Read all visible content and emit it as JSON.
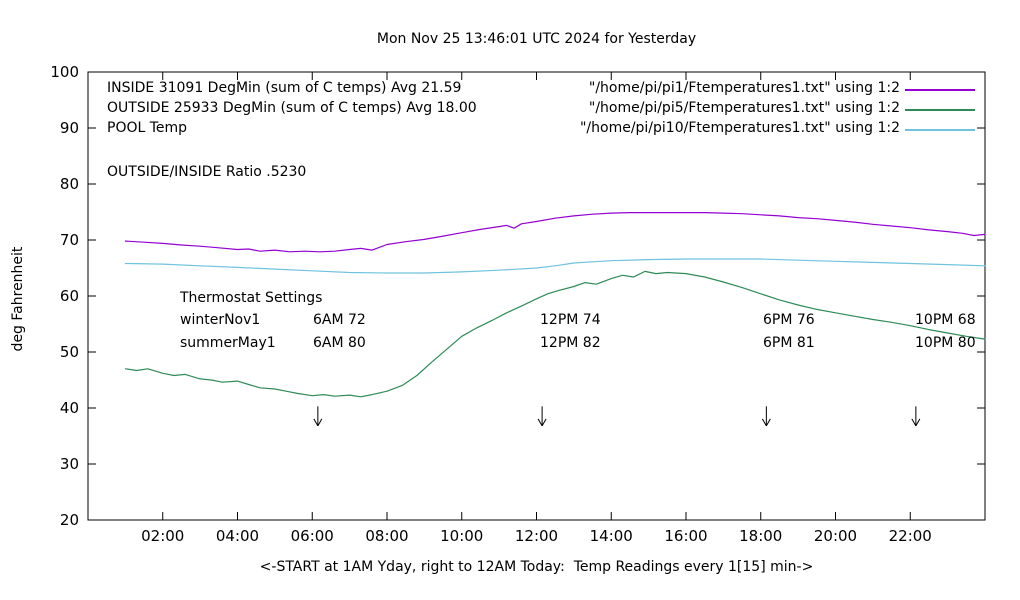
{
  "chart_data": {
    "type": "line",
    "title": "Mon Nov 25 13:46:01 UTC 2024 for Yesterday",
    "ylabel": "deg Fahrenheit",
    "xlabel": "<-START at 1AM Yday, right to 12AM Today:  Temp Readings every 1[15] min->",
    "xlim": [
      0,
      24
    ],
    "ylim": [
      20,
      100
    ],
    "y_ticks": [
      20,
      30,
      40,
      50,
      60,
      70,
      80,
      90,
      100
    ],
    "x_ticks": [
      {
        "v": 2,
        "label": "02:00"
      },
      {
        "v": 4,
        "label": "04:00"
      },
      {
        "v": 6,
        "label": "06:00"
      },
      {
        "v": 8,
        "label": "08:00"
      },
      {
        "v": 10,
        "label": "10:00"
      },
      {
        "v": 12,
        "label": "12:00"
      },
      {
        "v": 14,
        "label": "14:00"
      },
      {
        "v": 16,
        "label": "16:00"
      },
      {
        "v": 18,
        "label": "18:00"
      },
      {
        "v": 20,
        "label": "20:00"
      },
      {
        "v": 22,
        "label": "22:00"
      }
    ],
    "grid": false,
    "legend_position": "top-inside",
    "series": [
      {
        "name": "INSIDE",
        "color": "#9400d3",
        "points": [
          [
            1,
            69.8
          ],
          [
            1.5,
            69.6
          ],
          [
            2,
            69.4
          ],
          [
            2.5,
            69.1
          ],
          [
            3,
            68.9
          ],
          [
            3.5,
            68.6
          ],
          [
            4,
            68.3
          ],
          [
            4.3,
            68.4
          ],
          [
            4.6,
            68.0
          ],
          [
            5,
            68.2
          ],
          [
            5.4,
            67.9
          ],
          [
            5.8,
            68.0
          ],
          [
            6.2,
            67.9
          ],
          [
            6.6,
            68.0
          ],
          [
            7,
            68.3
          ],
          [
            7.3,
            68.5
          ],
          [
            7.6,
            68.2
          ],
          [
            8,
            69.2
          ],
          [
            8.5,
            69.7
          ],
          [
            9,
            70.1
          ],
          [
            9.5,
            70.7
          ],
          [
            10,
            71.3
          ],
          [
            10.5,
            71.9
          ],
          [
            11,
            72.4
          ],
          [
            11.2,
            72.6
          ],
          [
            11.4,
            72.1
          ],
          [
            11.6,
            72.9
          ],
          [
            12,
            73.3
          ],
          [
            12.5,
            73.9
          ],
          [
            13,
            74.3
          ],
          [
            13.5,
            74.6
          ],
          [
            14,
            74.8
          ],
          [
            14.5,
            74.9
          ],
          [
            15,
            74.9
          ],
          [
            15.5,
            74.9
          ],
          [
            16,
            74.9
          ],
          [
            16.5,
            74.9
          ],
          [
            17,
            74.8
          ],
          [
            17.5,
            74.7
          ],
          [
            18,
            74.5
          ],
          [
            18.5,
            74.3
          ],
          [
            19,
            74.0
          ],
          [
            19.5,
            73.8
          ],
          [
            20,
            73.5
          ],
          [
            20.5,
            73.2
          ],
          [
            21,
            72.8
          ],
          [
            21.5,
            72.5
          ],
          [
            22,
            72.2
          ],
          [
            22.5,
            71.8
          ],
          [
            23,
            71.5
          ],
          [
            23.4,
            71.2
          ],
          [
            23.7,
            70.8
          ],
          [
            24,
            71.0
          ]
        ]
      },
      {
        "name": "OUTSIDE",
        "color": "#2e8b57",
        "points": [
          [
            1,
            47.0
          ],
          [
            1.3,
            46.7
          ],
          [
            1.6,
            47.0
          ],
          [
            2,
            46.2
          ],
          [
            2.3,
            45.8
          ],
          [
            2.6,
            46.0
          ],
          [
            3,
            45.2
          ],
          [
            3.3,
            45.0
          ],
          [
            3.6,
            44.6
          ],
          [
            4,
            44.8
          ],
          [
            4.3,
            44.2
          ],
          [
            4.6,
            43.6
          ],
          [
            5,
            43.4
          ],
          [
            5.3,
            43.0
          ],
          [
            5.6,
            42.6
          ],
          [
            6,
            42.2
          ],
          [
            6.3,
            42.4
          ],
          [
            6.6,
            42.1
          ],
          [
            7,
            42.3
          ],
          [
            7.3,
            42.0
          ],
          [
            7.6,
            42.4
          ],
          [
            8,
            43.0
          ],
          [
            8.4,
            44.0
          ],
          [
            8.8,
            45.8
          ],
          [
            9.2,
            48.2
          ],
          [
            9.6,
            50.5
          ],
          [
            10,
            52.8
          ],
          [
            10.4,
            54.3
          ],
          [
            10.8,
            55.6
          ],
          [
            11.2,
            57.0
          ],
          [
            11.6,
            58.2
          ],
          [
            12,
            59.5
          ],
          [
            12.3,
            60.4
          ],
          [
            12.6,
            61.0
          ],
          [
            13,
            61.7
          ],
          [
            13.3,
            62.4
          ],
          [
            13.6,
            62.1
          ],
          [
            14,
            63.1
          ],
          [
            14.3,
            63.7
          ],
          [
            14.6,
            63.4
          ],
          [
            14.9,
            64.4
          ],
          [
            15.2,
            64.0
          ],
          [
            15.5,
            64.2
          ],
          [
            16,
            64.0
          ],
          [
            16.5,
            63.4
          ],
          [
            17,
            62.5
          ],
          [
            17.5,
            61.5
          ],
          [
            18,
            60.4
          ],
          [
            18.5,
            59.3
          ],
          [
            19,
            58.4
          ],
          [
            19.5,
            57.6
          ],
          [
            20,
            57.0
          ],
          [
            20.5,
            56.4
          ],
          [
            21,
            55.8
          ],
          [
            21.5,
            55.3
          ],
          [
            22,
            54.7
          ],
          [
            22.5,
            54.0
          ],
          [
            23,
            53.4
          ],
          [
            23.5,
            52.8
          ],
          [
            24,
            52.3
          ]
        ]
      },
      {
        "name": "POOL",
        "color": "#6fc3df",
        "points": [
          [
            1,
            65.8
          ],
          [
            2,
            65.7
          ],
          [
            3,
            65.4
          ],
          [
            4,
            65.1
          ],
          [
            5,
            64.8
          ],
          [
            6,
            64.5
          ],
          [
            7,
            64.2
          ],
          [
            8,
            64.1
          ],
          [
            9,
            64.1
          ],
          [
            10,
            64.3
          ],
          [
            11,
            64.6
          ],
          [
            12,
            65.0
          ],
          [
            12.5,
            65.4
          ],
          [
            13,
            65.9
          ],
          [
            13.5,
            66.1
          ],
          [
            14,
            66.3
          ],
          [
            15,
            66.5
          ],
          [
            16,
            66.6
          ],
          [
            17,
            66.6
          ],
          [
            18,
            66.6
          ],
          [
            19,
            66.4
          ],
          [
            20,
            66.2
          ],
          [
            21,
            66.0
          ],
          [
            22,
            65.8
          ],
          [
            23,
            65.6
          ],
          [
            24,
            65.4
          ]
        ]
      }
    ],
    "arrows": {
      "x_hours": [
        6.15,
        12.15,
        18.15,
        22.15
      ],
      "y_from": 40.3,
      "y_to": 36.8
    }
  },
  "legend": {
    "rows": [
      {
        "left": "INSIDE 31091 DegMin (sum of C temps) Avg 21.59",
        "right": "\"/home/pi/pi1/Ftemperatures1.txt\" using 1:2"
      },
      {
        "left": "OUTSIDE 25933 DegMin (sum of C temps) Avg 18.00",
        "right": "\"/home/pi/pi5/Ftemperatures1.txt\" using 1:2"
      },
      {
        "left": "POOL Temp",
        "right": "\"/home/pi/pi10/Ftemperatures1.txt\" using 1:2"
      }
    ],
    "ratio": "OUTSIDE/INSIDE Ratio .5230"
  },
  "thermostat": {
    "title": "Thermostat Settings",
    "rows": [
      {
        "label": "winterNov1",
        "c1": "6AM 72",
        "c2": "12PM 74",
        "c3": "6PM 76",
        "c4": "10PM 68"
      },
      {
        "label": "summerMay1",
        "c1": "6AM 80",
        "c2": "12PM 82",
        "c3": "6PM 81",
        "c4": "10PM 80"
      }
    ]
  }
}
